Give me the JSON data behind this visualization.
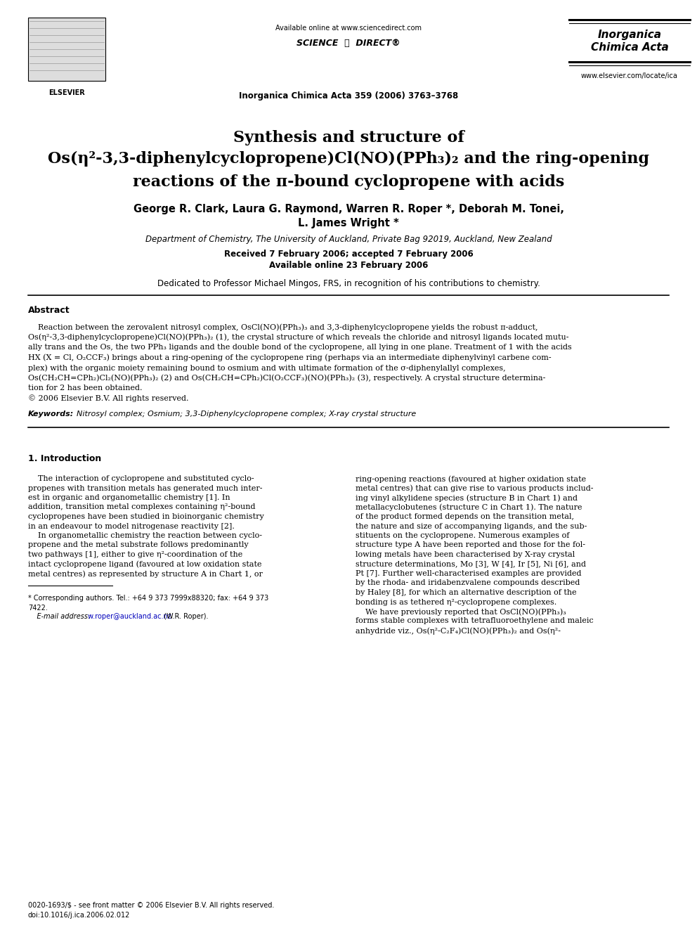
{
  "bg_color": "#ffffff",
  "page_width": 9.92,
  "page_height": 13.23,
  "dpi": 100,
  "header": {
    "available_online": "Available online at www.sciencedirect.com",
    "sciencedirect_text": "SCIENCE  ⓓ  DIRECT®",
    "journal_line": "Inorganica Chimica Acta 359 (2006) 3763–3768",
    "journal_name_line1": "Inorganica",
    "journal_name_line2": "Chimica Acta",
    "website": "www.elsevier.com/locate/ica"
  },
  "title_lines": [
    "Synthesis and structure of",
    "Os(η²-3,3-diphenylcyclopropene)Cl(NO)(PPh₃)₂ and the ring-opening",
    "reactions of the π-bound cyclopropene with acids"
  ],
  "authors": "George R. Clark, Laura G. Raymond, Warren R. Roper *, Deborah M. Tonei,",
  "authors2": "L. James Wright *",
  "affiliation": "Department of Chemistry, The University of Auckland, Private Bag 92019, Auckland, New Zealand",
  "received": "Received 7 February 2006; accepted 7 February 2006",
  "available_online_date": "Available online 23 February 2006",
  "dedication": "Dedicated to Professor Michael Mingos, FRS, in recognition of his contributions to chemistry.",
  "abstract_heading": "Abstract",
  "abstract_lines": [
    "    Reaction between the zerovalent nitrosyl complex, OsCl(NO)(PPh₃)₃ and 3,3-diphenylcyclopropene yields the robust π-adduct,",
    "Os(η²-3,3-diphenylcyclopropene)Cl(NO)(PPh₃)₂ (1), the crystal structure of which reveals the chloride and nitrosyl ligands located mutu-",
    "ally trans and the Os, the two PPh₃ ligands and the double bond of the cyclopropene, all lying in one plane. Treatment of 1 with the acids",
    "HX (X = Cl, O₂CCF₃) brings about a ring-opening of the cyclopropene ring (perhaps via an intermediate diphenylvinyl carbene com-",
    "plex) with the organic moiety remaining bound to osmium and with ultimate formation of the σ-diphenylallyl complexes,",
    "Os(CH₂CH=CPh₂)Cl₂(NO)(PPh₃)₂ (2) and Os(CH₂CH=CPh₂)Cl(O₂CCF₃)(NO)(PPh₃)₂ (3), respectively. A crystal structure determina-",
    "tion for 2 has been obtained.",
    "© 2006 Elsevier B.V. All rights reserved."
  ],
  "keywords_label": "Keywords:",
  "keywords_text": "  Nitrosyl complex; Osmium; 3,3-Diphenylcyclopropene complex; X-ray crystal structure",
  "section1_heading": "1. Introduction",
  "section1_col1_lines": [
    "    The interaction of cyclopropene and substituted cyclo-",
    "propenes with transition metals has generated much inter-",
    "est in organic and organometallic chemistry [1]. In",
    "addition, transition metal complexes containing η²-bound",
    "cyclopropenes have been studied in bioinorganic chemistry",
    "in an endeavour to model nitrogenase reactivity [2].",
    "    In organometallic chemistry the reaction between cyclo-",
    "propene and the metal substrate follows predominantly",
    "two pathways [1], either to give η²-coordination of the",
    "intact cyclopropene ligand (favoured at low oxidation state",
    "metal centres) as represented by structure A in Chart 1, or"
  ],
  "section1_col2_lines": [
    "ring-opening reactions (favoured at higher oxidation state",
    "metal centres) that can give rise to various products includ-",
    "ing vinyl alkylidene species (structure B in Chart 1) and",
    "metallacyclobutenes (structure C in Chart 1). The nature",
    "of the product formed depends on the transition metal,",
    "the nature and size of accompanying ligands, and the sub-",
    "stituents on the cyclopropene. Numerous examples of",
    "structure type A have been reported and those for the fol-",
    "lowing metals have been characterised by X-ray crystal",
    "structure determinations, Mo [3], W [4], Ir [5], Ni [6], and",
    "Pt [7]. Further well-characterised examples are provided",
    "by the rhoda- and iridabenzvalene compounds described",
    "by Haley [8], for which an alternative description of the",
    "bonding is as tethered η²-cyclopropene complexes.",
    "    We have previously reported that OsCl(NO)(PPh₃)₃",
    "forms stable complexes with tetrafluoroethylene and maleic",
    "anhydride viz., Os(η²-C₂F₄)Cl(NO)(PPh₃)₂ and Os(η²-"
  ],
  "footnote_star": "* Corresponding authors. Tel.: +64 9 373 7999x88320; fax: +64 9 373",
  "footnote_star2": "7422.",
  "footnote_email_label": "    E-mail address:",
  "footnote_email_link": " w.roper@auckland.ac.nz",
  "footnote_email_rest": " (W.R. Roper).",
  "footer_left": "0020-1693/$ - see front matter © 2006 Elsevier B.V. All rights reserved.",
  "footer_doi": "doi:10.1016/j.ica.2006.02.012",
  "link_color": "#0000bb",
  "text_color": "#000000"
}
